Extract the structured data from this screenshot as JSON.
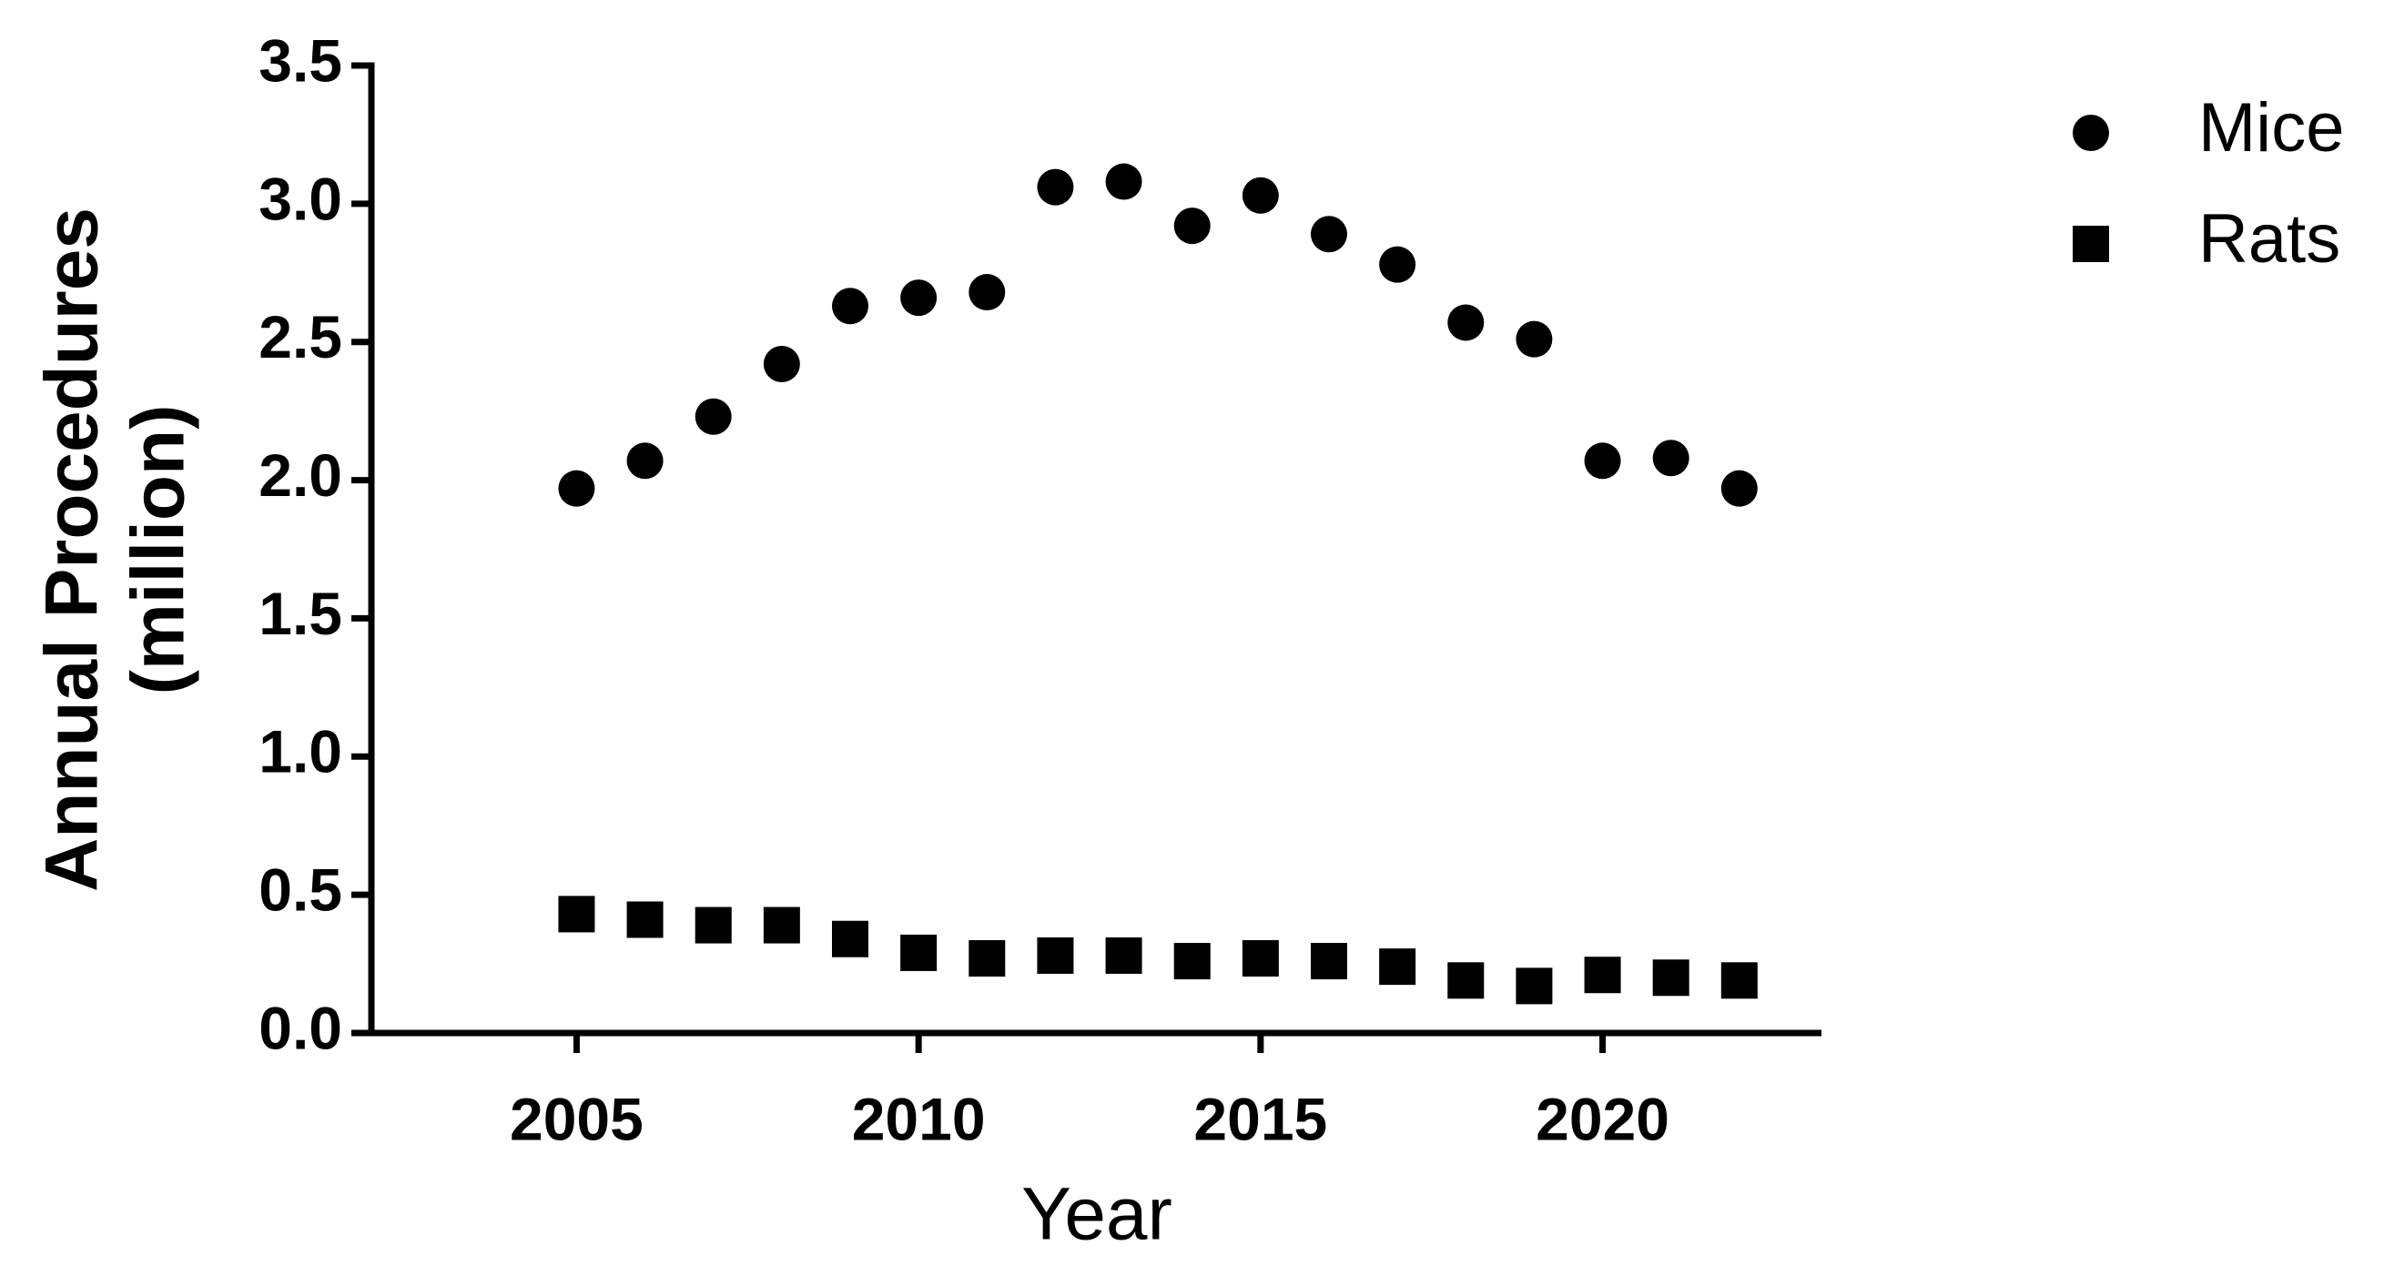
{
  "chart_data": {
    "type": "scatter",
    "x_label": "Year",
    "y_label": [
      "Annual Procedures",
      "(million)"
    ],
    "x": [
      2005,
      2006,
      2007,
      2008,
      2009,
      2010,
      2011,
      2012,
      2013,
      2014,
      2015,
      2016,
      2017,
      2018,
      2019,
      2020,
      2021,
      2022
    ],
    "series": [
      {
        "name": "Mice",
        "color": "#000000",
        "marker": "circle",
        "values": [
          1.97,
          2.07,
          2.23,
          2.42,
          2.63,
          2.66,
          2.68,
          3.06,
          3.08,
          2.92,
          3.03,
          2.89,
          2.78,
          2.57,
          2.51,
          2.07,
          2.08,
          1.97
        ]
      },
      {
        "name": "Rats",
        "color": "#000000",
        "marker": "square",
        "values": [
          0.43,
          0.41,
          0.39,
          0.39,
          0.34,
          0.29,
          0.27,
          0.28,
          0.28,
          0.26,
          0.27,
          0.26,
          0.24,
          0.19,
          0.17,
          0.21,
          0.2,
          0.19
        ]
      }
    ],
    "xlim": [
      2002,
      2023.2
    ],
    "xticks": [
      2005,
      2010,
      2015,
      2020
    ],
    "ylim": [
      0,
      3.5
    ],
    "yticks": [
      {
        "value": 0,
        "label": "0.0"
      },
      0.5,
      {
        "value": 1,
        "label": "1.0"
      },
      1.5,
      {
        "value": 2,
        "label": "2.0"
      },
      2.5,
      {
        "value": 3,
        "label": "3.0"
      },
      3.5
    ],
    "legend": "top-right",
    "grid": false
  }
}
